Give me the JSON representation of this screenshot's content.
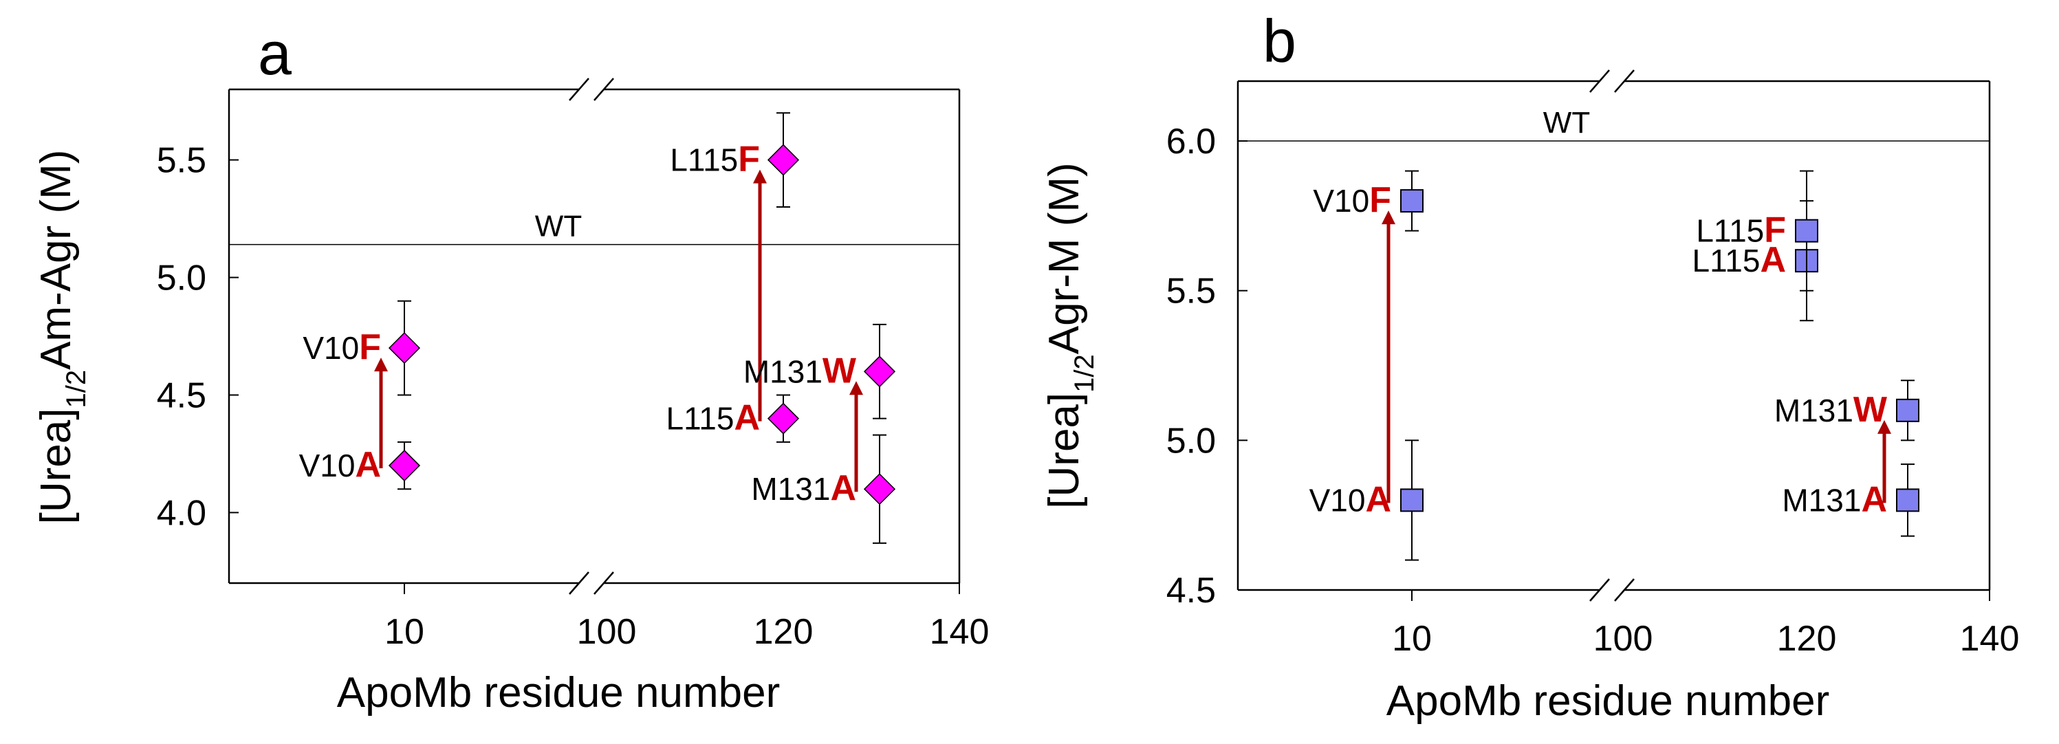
{
  "chart_data": [
    {
      "panel_label": "a",
      "type": "scatter",
      "ylabel_main": "[Urea]",
      "ylabel_sub": "1/2",
      "ylabel_rest": "Am-Agr (M)",
      "xlabel": "ApoMb residue number",
      "ylim": [
        3.7,
        5.8
      ],
      "yticks": [
        4.0,
        4.5,
        5.0,
        5.5
      ],
      "ytick_labels": [
        "4.0",
        "4.5",
        "5.0",
        "5.5"
      ],
      "xtick_labels": [
        "10",
        "100",
        "120",
        "140"
      ],
      "x_axis_break": "between 10 and 100",
      "reference": {
        "label": "WT",
        "y": 5.14
      },
      "marker": {
        "shape": "diamond",
        "color": "#ff00ff"
      },
      "points": [
        {
          "x": 10,
          "y": 4.2,
          "yerr_low": 4.1,
          "yerr_high": 4.3,
          "label_prefix": "V10",
          "label_mut": "A"
        },
        {
          "x": 10,
          "y": 4.7,
          "yerr_low": 4.5,
          "yerr_high": 4.9,
          "label_prefix": "V10",
          "label_mut": "F"
        },
        {
          "x": 115,
          "y": 4.4,
          "yerr_low": 4.3,
          "yerr_high": 4.5,
          "label_prefix": "L115",
          "label_mut": "A"
        },
        {
          "x": 115,
          "y": 5.5,
          "yerr_low": 5.3,
          "yerr_high": 5.7,
          "label_prefix": "L115",
          "label_mut": "F"
        },
        {
          "x": 131,
          "y": 4.1,
          "yerr_low": 3.87,
          "yerr_high": 4.33,
          "label_prefix": "M131",
          "label_mut": "A"
        },
        {
          "x": 131,
          "y": 4.6,
          "yerr_low": 4.4,
          "yerr_high": 4.8,
          "label_prefix": "M131",
          "label_mut": "W"
        }
      ],
      "arrows": [
        {
          "from": "V10A",
          "to": "V10F"
        },
        {
          "from": "L115A",
          "to": "L115F"
        },
        {
          "from": "M131A",
          "to": "M131W"
        }
      ]
    },
    {
      "panel_label": "b",
      "type": "scatter",
      "ylabel_main": "[Urea]",
      "ylabel_sub": "1/2",
      "ylabel_rest": "Agr-M (M)",
      "xlabel": "ApoMb residue number",
      "ylim": [
        4.5,
        6.2
      ],
      "yticks": [
        4.5,
        5.0,
        5.5,
        6.0
      ],
      "ytick_labels": [
        "4.5",
        "5.0",
        "5.5",
        "6.0"
      ],
      "xtick_labels": [
        "10",
        "100",
        "120",
        "140"
      ],
      "x_axis_break": "between 10 and 100",
      "reference": {
        "label": "WT",
        "y": 6.0
      },
      "marker": {
        "shape": "square",
        "color": "#8080f0"
      },
      "points": [
        {
          "x": 10,
          "y": 4.8,
          "yerr_low": 4.6,
          "yerr_high": 5.0,
          "label_prefix": "V10",
          "label_mut": "A"
        },
        {
          "x": 10,
          "y": 5.8,
          "yerr_low": 5.7,
          "yerr_high": 5.9,
          "label_prefix": "V10",
          "label_mut": "F"
        },
        {
          "x": 115,
          "y": 5.6,
          "yerr_low": 5.4,
          "yerr_high": 5.8,
          "label_prefix": "L115",
          "label_mut": "A"
        },
        {
          "x": 115,
          "y": 5.7,
          "yerr_low": 5.5,
          "yerr_high": 5.9,
          "label_prefix": "L115",
          "label_mut": "F"
        },
        {
          "x": 131,
          "y": 4.8,
          "yerr_low": 4.68,
          "yerr_high": 4.92,
          "label_prefix": "M131",
          "label_mut": "A"
        },
        {
          "x": 131,
          "y": 5.1,
          "yerr_low": 5.0,
          "yerr_high": 5.2,
          "label_prefix": "M131",
          "label_mut": "W"
        }
      ],
      "arrows": [
        {
          "from": "V10A",
          "to": "V10F"
        },
        {
          "from": "M131A",
          "to": "M131W"
        }
      ]
    }
  ],
  "colors": {
    "axis": "#000000",
    "arrow": "#aa0000",
    "mutation_text": "#cc0000"
  }
}
